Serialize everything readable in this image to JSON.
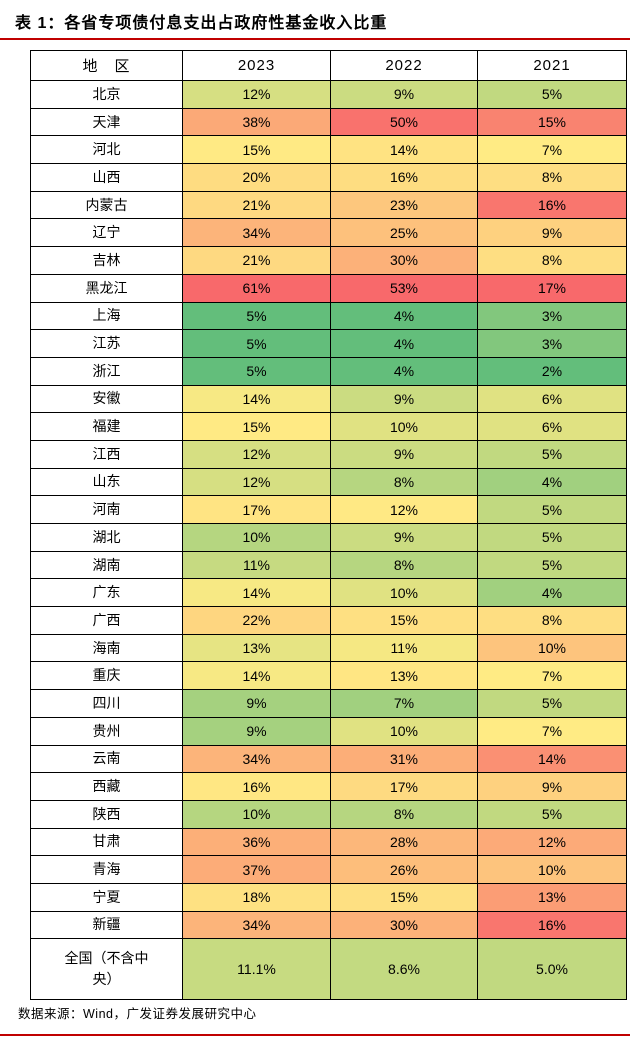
{
  "title": "表 1：各省专项债付息支出占政府性基金收入比重",
  "source": "数据来源：Wind，广发证券发展研究中心",
  "accent_rule_color": "#c00000",
  "table": {
    "columns": [
      "地　区",
      "2023",
      "2022",
      "2021"
    ],
    "national_index": 31,
    "national_label_display": "全国（不含中\n央）"
  },
  "chart_data": {
    "type": "heatmap",
    "title": "表 1：各省专项债付息支出占政府性基金收入比重",
    "unit": "%",
    "row_header": "地　区",
    "categories": [
      "北京",
      "天津",
      "河北",
      "山西",
      "内蒙古",
      "辽宁",
      "吉林",
      "黑龙江",
      "上海",
      "江苏",
      "浙江",
      "安徽",
      "福建",
      "江西",
      "山东",
      "河南",
      "湖北",
      "湖南",
      "广东",
      "广西",
      "海南",
      "重庆",
      "四川",
      "贵州",
      "云南",
      "西藏",
      "陕西",
      "甘肃",
      "青海",
      "宁夏",
      "新疆",
      "全国（不含中央）"
    ],
    "series": [
      {
        "name": "2023",
        "values": [
          12,
          38,
          15,
          20,
          21,
          34,
          21,
          61,
          5,
          5,
          5,
          14,
          15,
          12,
          12,
          17,
          10,
          11,
          14,
          22,
          13,
          14,
          9,
          9,
          34,
          16,
          10,
          36,
          37,
          18,
          34,
          11.1
        ]
      },
      {
        "name": "2022",
        "values": [
          9,
          50,
          14,
          16,
          23,
          25,
          30,
          53,
          4,
          4,
          4,
          9,
          10,
          9,
          8,
          12,
          9,
          8,
          10,
          15,
          11,
          13,
          7,
          10,
          31,
          17,
          8,
          28,
          26,
          15,
          30,
          8.6
        ]
      },
      {
        "name": "2021",
        "values": [
          5,
          15,
          7,
          8,
          16,
          9,
          8,
          17,
          3,
          3,
          2,
          6,
          6,
          5,
          4,
          5,
          5,
          5,
          4,
          8,
          10,
          7,
          5,
          7,
          14,
          9,
          5,
          12,
          10,
          13,
          16,
          5.0
        ]
      }
    ],
    "colorscale": {
      "min_color": "#63BE7B",
      "mid_color": "#FFEB84",
      "max_color": "#F8696B",
      "scope": "per-column",
      "per_column_stats": [
        {
          "min": 5,
          "mid": 14.5,
          "max": 61
        },
        {
          "min": 4,
          "mid": 11.5,
          "max": 53
        },
        {
          "min": 2,
          "mid": 7,
          "max": 17
        }
      ]
    }
  }
}
